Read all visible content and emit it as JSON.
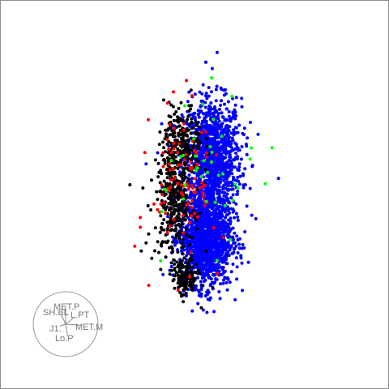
{
  "chart_data": {
    "type": "scatter",
    "title": "",
    "xlabel": "",
    "ylabel": "",
    "axes_visible": false,
    "grid": false,
    "legend": "none",
    "xlim": [
      -6,
      6
    ],
    "ylim": [
      -6,
      6
    ],
    "series": [
      {
        "color": "#0000ff",
        "count": 2600,
        "clusters": [
          {
            "center": [
              0.55,
              1.15
            ],
            "spread": [
              0.45,
              0.9
            ],
            "share": 0.45
          },
          {
            "center": [
              0.35,
              -1.35
            ],
            "spread": [
              0.4,
              0.75
            ],
            "share": 0.55
          }
        ],
        "outliers": [
          [
            0.35,
            4.1
          ],
          [
            0.7,
            4.4
          ],
          [
            0.55,
            3.9
          ],
          [
            2.6,
            0.5
          ],
          [
            1.9,
            -0.75
          ],
          [
            -1.5,
            0.95
          ]
        ]
      },
      {
        "color": "#000000",
        "count": 700,
        "clusters": [
          {
            "center": [
              -0.35,
              1.6
            ],
            "spread": [
              0.3,
              0.6
            ],
            "share": 0.3
          },
          {
            "center": [
              -0.6,
              -0.2
            ],
            "spread": [
              0.3,
              0.9
            ],
            "share": 0.5
          },
          {
            "center": [
              -0.3,
              -2.6
            ],
            "spread": [
              0.2,
              0.3
            ],
            "share": 0.2
          }
        ],
        "outliers": [
          [
            -2.0,
            0.3
          ],
          [
            -1.6,
            0.2
          ],
          [
            -1.5,
            -1.5
          ],
          [
            -1.65,
            -1.75
          ]
        ]
      },
      {
        "color": "#ff0000",
        "count": 100,
        "clusters": [
          {
            "center": [
              -0.3,
              0.4
            ],
            "spread": [
              0.5,
              1.2
            ],
            "share": 1.0
          }
        ],
        "outliers": [
          [
            -1.85,
            -1.6
          ],
          [
            -0.8,
            1.4
          ],
          [
            0.7,
            -2.45
          ]
        ]
      },
      {
        "color": "#00ff00",
        "count": 35,
        "clusters": [
          {
            "center": [
              0.4,
              0.6
            ],
            "spread": [
              0.7,
              1.1
            ],
            "share": 1.0
          }
        ],
        "outliers": [
          [
            2.4,
            1.45
          ],
          [
            -1.05,
            -2.05
          ],
          [
            0.25,
            2.8
          ],
          [
            -0.3,
            2.75
          ]
        ]
      }
    ],
    "biplot": {
      "labels": [
        "MET.P",
        "SH.BL",
        "L.PT",
        "MET.M",
        "J1.",
        "Lo.P"
      ],
      "directions": [
        [
          0.0,
          0.9
        ],
        [
          -0.25,
          0.55
        ],
        [
          0.45,
          0.35
        ],
        [
          0.75,
          -0.05
        ],
        [
          -0.3,
          -0.1
        ],
        [
          0.1,
          -0.6
        ]
      ]
    }
  }
}
